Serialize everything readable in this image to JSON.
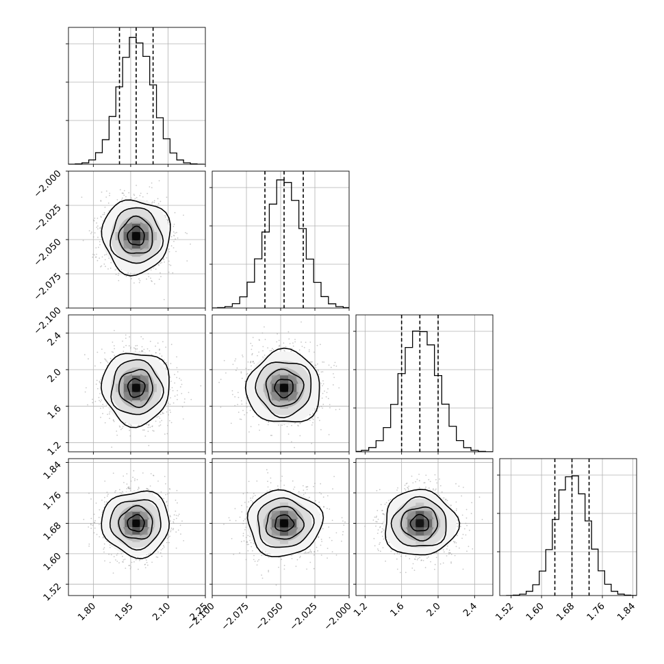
{
  "chart_data": {
    "type": "corner",
    "title": "",
    "grid": true,
    "parameters": [
      {
        "index": 0,
        "range": [
          1.7,
          2.25
        ],
        "ticks": [
          1.8,
          1.95,
          2.1,
          2.25
        ],
        "tick_labels": [
          "1.80",
          "1.95",
          "2.10",
          "2.25"
        ],
        "quantiles": [
          1.905,
          1.972,
          2.04
        ],
        "center": 1.972,
        "sigma": 0.068,
        "hist_peak": 0.93
      },
      {
        "index": 1,
        "range": [
          -2.1,
          -2.0
        ],
        "ticks": [
          -2.1,
          -2.075,
          -2.05,
          -2.025,
          -2.0
        ],
        "tick_labels": [
          "−2.100",
          "−2.075",
          "−2.050",
          "−2.025",
          "−2.000"
        ],
        "quantiles": [
          -2.0615,
          -2.0475,
          -2.0335
        ],
        "center": -2.0475,
        "sigma": 0.0135,
        "hist_peak": 0.93
      },
      {
        "index": 2,
        "range": [
          1.1,
          2.6
        ],
        "ticks": [
          1.2,
          1.6,
          2.0,
          2.4
        ],
        "tick_labels": [
          "1.2",
          "1.6",
          "2.0",
          "2.4"
        ],
        "quantiles": [
          1.6,
          1.8,
          2.0
        ],
        "center": 1.8,
        "sigma": 0.2,
        "hist_peak": 0.92
      },
      {
        "index": 3,
        "range": [
          1.49,
          1.85
        ],
        "ticks": [
          1.52,
          1.6,
          1.68,
          1.76,
          1.84
        ],
        "tick_labels": [
          "1.52",
          "1.60",
          "1.68",
          "1.76",
          "1.84"
        ],
        "quantiles": [
          1.635,
          1.68,
          1.725
        ],
        "center": 1.68,
        "sigma": 0.043,
        "hist_peak": 0.91
      }
    ],
    "hist_bins": 20,
    "quantile_levels": [
      0.16,
      0.5,
      0.84
    ],
    "contour_sigma_levels": [
      0.5,
      1.0,
      1.5,
      2.0
    ],
    "colors": {
      "contour": "#000000",
      "scatter": "#9a9a9a",
      "grid": "#b0b0b0",
      "axes": "#000000"
    }
  }
}
